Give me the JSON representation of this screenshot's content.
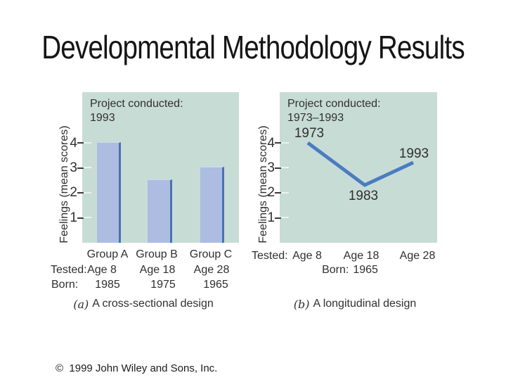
{
  "slide": {
    "title": "Developmental Methodology Results",
    "copyright": "©  1999 John Wiley and Sons, Inc."
  },
  "colors": {
    "panel_bg": "#c8dcd6",
    "bar_fill": "#adbce1",
    "bar_edge": "#4a72b2",
    "line": "#4a7cc2",
    "text": "#2f2f2f"
  },
  "chart_data": [
    {
      "type": "bar",
      "conducted_title": "Project conducted:",
      "conducted_value": "1993",
      "ylabel": "Feelings (mean scores)",
      "ylim": [
        0,
        4.8
      ],
      "yticks": [
        4,
        3,
        2,
        1
      ],
      "grid": false,
      "categories": [
        "Group A",
        "Group B",
        "Group C"
      ],
      "values": [
        4.0,
        2.5,
        3.0
      ],
      "tested_label": "Tested:",
      "tested_ages": [
        "Age 8",
        "Age 18",
        "Age 28"
      ],
      "born_label": "Born:",
      "born_years": [
        "1985",
        "1975",
        "1965"
      ],
      "panel_label": "(a)",
      "caption": "A cross-sectional design"
    },
    {
      "type": "line",
      "conducted_title": "Project conducted:",
      "conducted_value": "1973–1993",
      "ylabel": "Feelings (mean scores)",
      "ylim": [
        0,
        4.8
      ],
      "yticks": [
        4,
        3,
        2,
        1
      ],
      "grid": false,
      "x_categories": [
        "Age 8",
        "Age 18",
        "Age 28"
      ],
      "points": [
        {
          "year": "1973",
          "age": "Age 8",
          "value": 4.0
        },
        {
          "year": "1983",
          "age": "Age 18",
          "value": 2.3
        },
        {
          "year": "1993",
          "age": "Age 28",
          "value": 3.2
        }
      ],
      "tested_label": "Tested:",
      "tested_ages": [
        "Age 8",
        "Age 18",
        "Age 28"
      ],
      "born_label": "Born:",
      "born_years": [
        "1965"
      ],
      "panel_label": "(b)",
      "caption": "A longitudinal design"
    }
  ]
}
